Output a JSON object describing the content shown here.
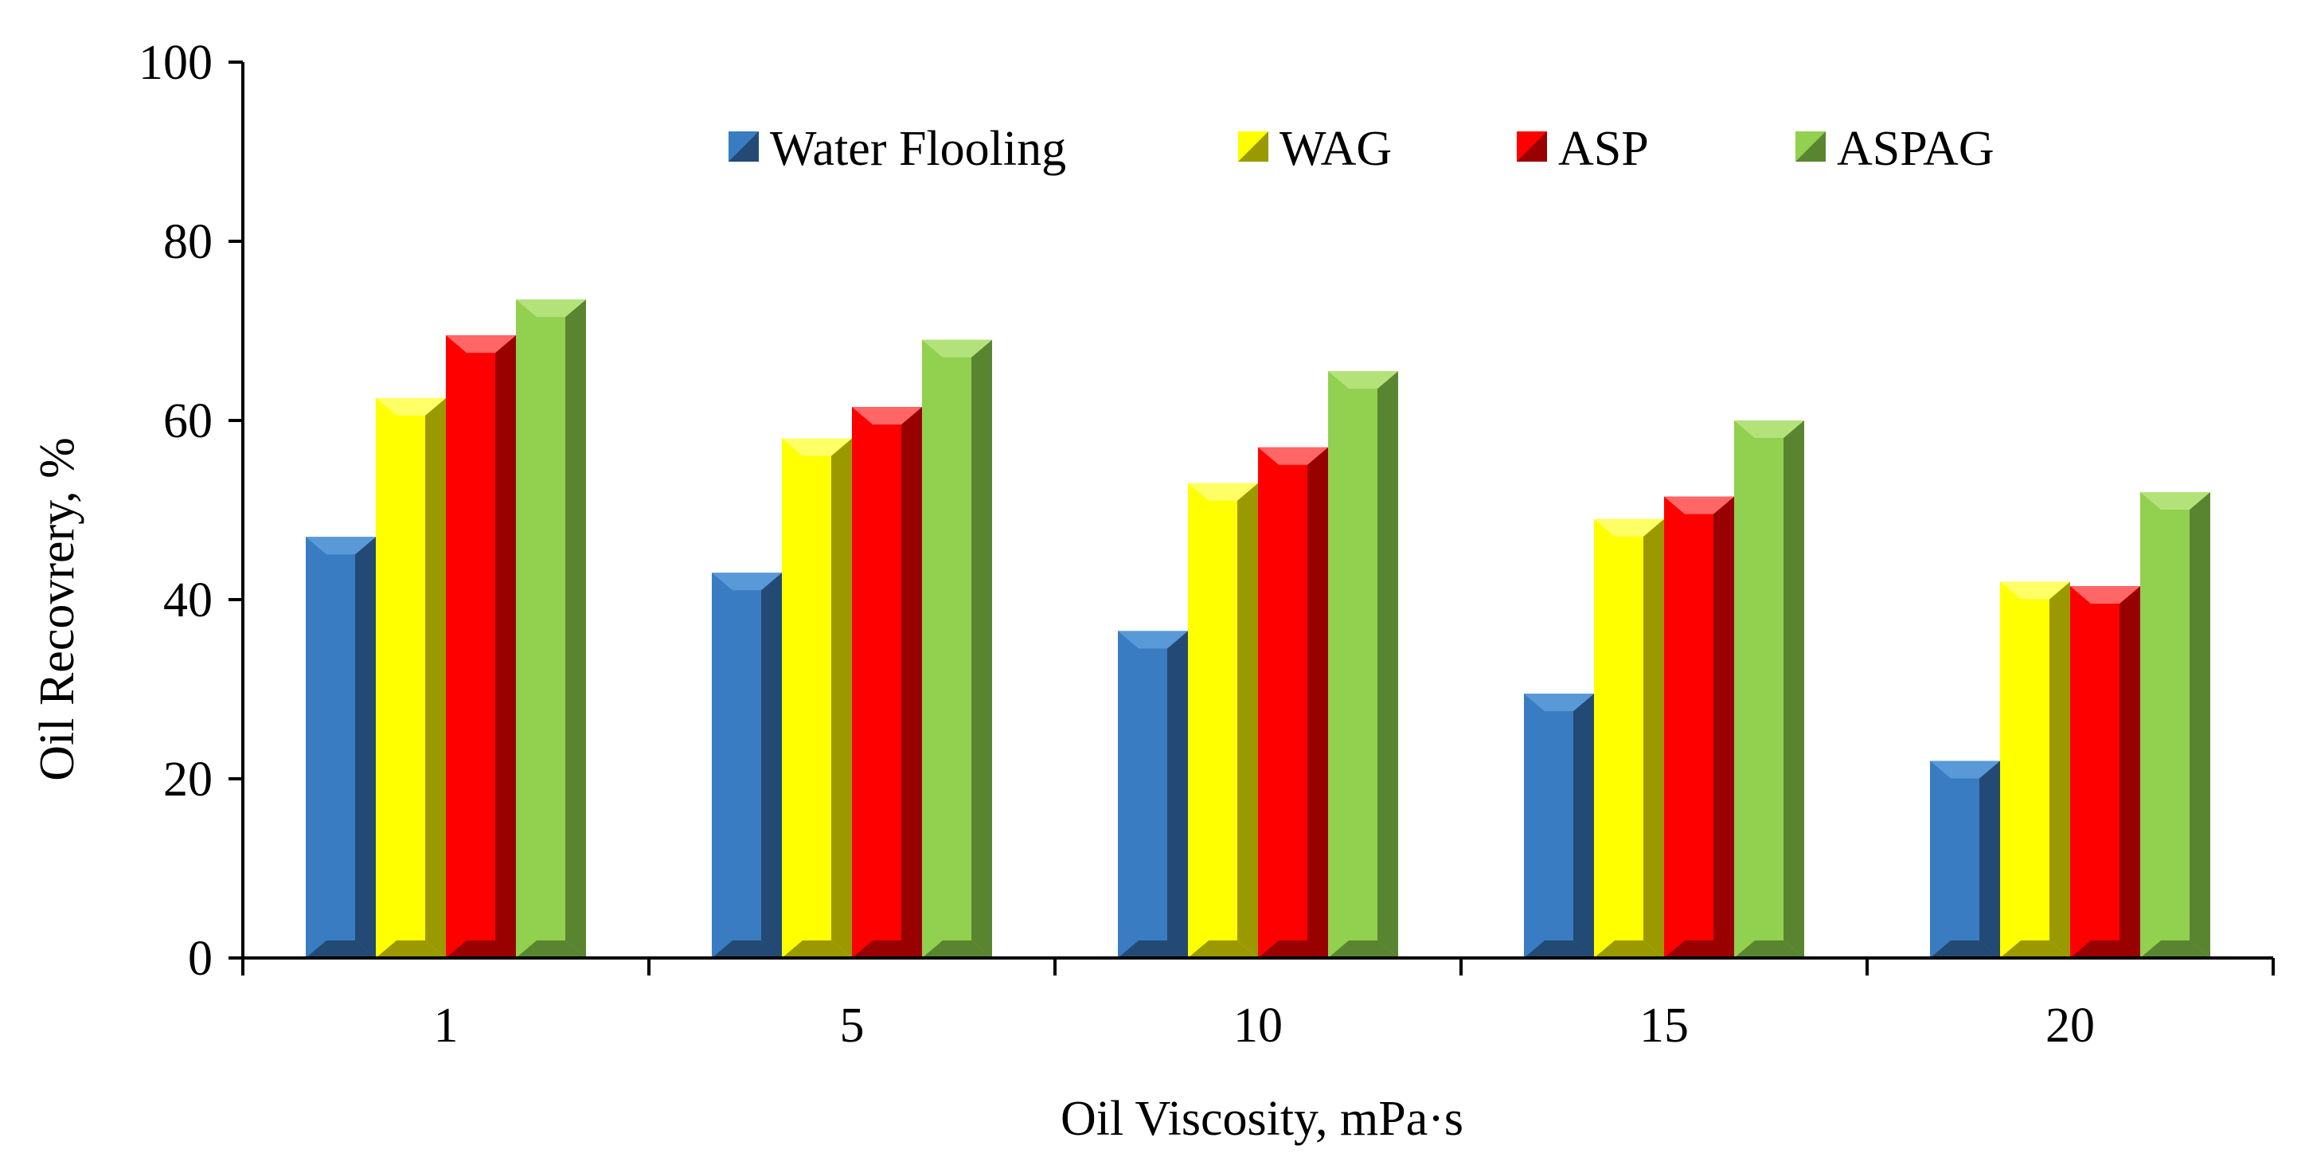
{
  "chart_data": {
    "type": "bar",
    "title": "",
    "xlabel": "Oil Viscosity, mPa·s",
    "ylabel": "Oil Recovrery, %",
    "categories": [
      "1",
      "5",
      "10",
      "15",
      "20"
    ],
    "yticks": [
      "0",
      "20",
      "40",
      "60",
      "80",
      "100"
    ],
    "ylim": [
      0,
      100
    ],
    "grid": false,
    "legend_position": "top",
    "series": [
      {
        "name": "Water Flooling",
        "values": [
          47,
          43,
          36.5,
          29.5,
          22
        ],
        "color": "#3a7cc2",
        "side_color": "#234a75",
        "top_color": "#5a99d8"
      },
      {
        "name": "WAG",
        "values": [
          62.5,
          58,
          53,
          49,
          42
        ],
        "color": "#ffff00",
        "side_color": "#9a9a00",
        "top_color": "#ffff66"
      },
      {
        "name": "ASP",
        "values": [
          69.5,
          61.5,
          57,
          51.5,
          41.5
        ],
        "color": "#ff0000",
        "side_color": "#990000",
        "top_color": "#ff6666"
      },
      {
        "name": "ASPAG",
        "values": [
          73.5,
          69,
          65.5,
          60,
          52
        ],
        "color": "#92d050",
        "side_color": "#5a8530",
        "top_color": "#b4e27a"
      }
    ]
  }
}
